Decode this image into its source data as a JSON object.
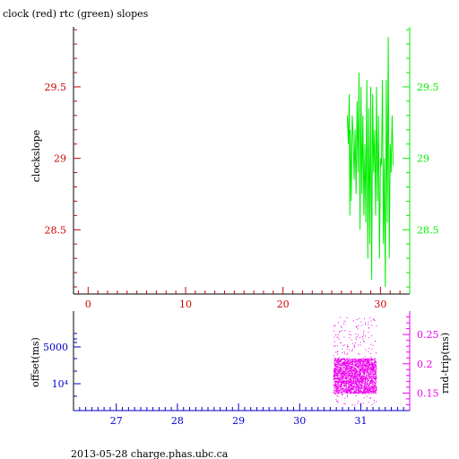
{
  "title": "clock (red) rtc (green) slopes",
  "footer": "2013-05-28 charge.phas.ubc.ca",
  "colors": {
    "clock": "#cc0000",
    "rtc": "#00ee00",
    "offset": "#0000cc",
    "rndtrip": "#ee00ee",
    "axis": "#000000"
  },
  "chart_data": [
    {
      "type": "line",
      "ylabel": "clockslope",
      "xlim": [
        -1.5,
        33
      ],
      "ylim": [
        28.05,
        29.92
      ],
      "x_ticks": [
        0,
        10,
        20,
        30
      ],
      "x_tick_labels": [
        "0",
        "10",
        "20",
        "30"
      ],
      "y_left_ticks": [
        28.5,
        29,
        29.5
      ],
      "y_left_tick_labels": [
        "28.5",
        "29",
        "29.5"
      ],
      "y_right_ticks": [
        28.5,
        29,
        29.5
      ],
      "y_right_tick_labels": [
        "28.5",
        "29",
        "29.5"
      ],
      "series": [
        {
          "color": "#00ee00",
          "x": [
            26.6,
            26.7,
            26.8,
            26.85,
            26.9,
            27.0,
            27.1,
            27.2,
            27.3,
            27.4,
            27.5,
            27.6,
            27.7,
            27.8,
            27.9,
            28.0,
            28.1,
            28.2,
            28.3,
            28.4,
            28.5,
            28.6,
            28.7,
            28.8,
            28.9,
            29.0,
            29.1,
            29.2,
            29.3,
            29.4,
            29.5,
            29.6,
            29.7,
            29.8,
            29.9,
            30.0,
            30.1,
            30.2,
            30.3,
            30.4,
            30.5,
            30.6,
            30.7,
            30.8,
            30.9,
            31.0,
            31.1,
            31.2,
            31.3
          ],
          "values": [
            29.3,
            29.1,
            29.45,
            28.6,
            29.2,
            28.7,
            29.3,
            29.15,
            28.85,
            29.2,
            28.75,
            29.4,
            28.9,
            29.6,
            28.5,
            29.5,
            28.75,
            29.3,
            28.6,
            29.1,
            28.55,
            29.55,
            28.3,
            29.35,
            28.4,
            29.5,
            28.15,
            29.45,
            28.9,
            29.2,
            28.6,
            29.5,
            28.7,
            29.3,
            28.3,
            29.0,
            28.95,
            29.55,
            28.4,
            29.0,
            28.1,
            29.55,
            28.55,
            29.85,
            28.3,
            29.1,
            28.9,
            29.3,
            28.95
          ]
        }
      ]
    },
    {
      "type": "scatter",
      "ylabel": "offset(ms)",
      "y2label": "rnd-trip(ms)",
      "xlim": [
        26.3,
        31.8
      ],
      "x_ticks": [
        27,
        28,
        29,
        30,
        31
      ],
      "x_tick_labels": [
        "27",
        "28",
        "29",
        "30",
        "31"
      ],
      "y_left_tick_labels": [
        "5000",
        "10⁴"
      ],
      "y_right_ticks": [
        0.15,
        0.2,
        0.25
      ],
      "y_right_tick_labels": [
        "0.15",
        "0.2",
        "0.25"
      ],
      "y_right_lim": [
        0.12,
        0.29
      ],
      "series": [
        {
          "color": "#ee00ee",
          "x_range": [
            30.55,
            31.25
          ],
          "y_band": [
            0.13,
            0.28
          ],
          "y_core": [
            0.15,
            0.21
          ]
        }
      ]
    }
  ]
}
